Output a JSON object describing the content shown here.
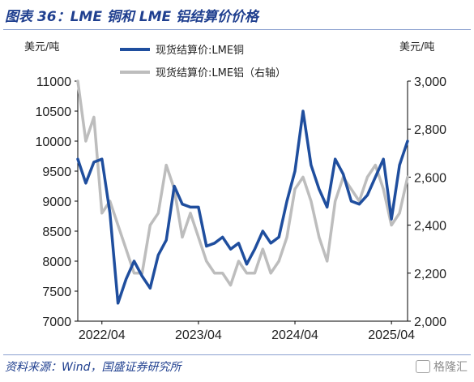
{
  "header": {
    "title": "图表 36：LME 铜和 LME 铝结算价价格"
  },
  "footer": {
    "source": "资料来源：Wind，国盛证券研究所",
    "watermark": "格隆汇"
  },
  "colors": {
    "copper": "#1f4e9e",
    "aluminum": "#bdbdbd"
  },
  "chart_data": {
    "type": "line",
    "x_tick_labels": [
      "2022/04",
      "2023/04",
      "2024/04",
      "2025/04"
    ],
    "y_left": {
      "unit_label": "美元/吨",
      "min": 7000,
      "max": 11000,
      "ticks": [
        7000,
        7500,
        8000,
        8500,
        9000,
        9500,
        10000,
        10500,
        11000
      ]
    },
    "y_right": {
      "unit_label": "美元/吨",
      "min": 2000,
      "max": 3000,
      "ticks": [
        "2,000",
        "2,200",
        "2,400",
        "2,600",
        "2,800",
        "3,000"
      ],
      "tick_values": [
        2000,
        2200,
        2400,
        2600,
        2800,
        3000
      ]
    },
    "legend": {
      "placement": "top-center"
    },
    "grid": false,
    "series": [
      {
        "name": "现货结算价:LME铜",
        "axis": "left",
        "x": [
          "2022/01",
          "2022/02",
          "2022/03",
          "2022/04",
          "2022/05",
          "2022/06",
          "2022/07",
          "2022/08",
          "2022/09",
          "2022/10",
          "2022/11",
          "2022/12",
          "2023/01",
          "2023/02",
          "2023/03",
          "2023/04",
          "2023/05",
          "2023/06",
          "2023/07",
          "2023/08",
          "2023/09",
          "2023/10",
          "2023/11",
          "2023/12",
          "2024/01",
          "2024/02",
          "2024/03",
          "2024/04",
          "2024/05",
          "2024/06",
          "2024/07",
          "2024/08",
          "2024/09",
          "2024/10",
          "2024/11",
          "2024/12",
          "2025/01",
          "2025/02",
          "2025/03",
          "2025/04",
          "2025/05",
          "2025/06"
        ],
        "values": [
          9700,
          9300,
          9650,
          9700,
          8800,
          7300,
          7700,
          8000,
          7750,
          7550,
          8100,
          8350,
          9250,
          8950,
          8900,
          8900,
          8250,
          8300,
          8400,
          8200,
          8300,
          7950,
          8200,
          8500,
          8300,
          8400,
          9000,
          9500,
          10500,
          9600,
          9200,
          8900,
          9700,
          9450,
          9000,
          8950,
          9100,
          9400,
          9700,
          8700,
          9600,
          10000
        ]
      },
      {
        "name": "现货结算价:LME铝（右轴）",
        "axis": "right",
        "x": [
          "2022/01",
          "2022/02",
          "2022/03",
          "2022/04",
          "2022/05",
          "2022/06",
          "2022/07",
          "2022/08",
          "2022/09",
          "2022/10",
          "2022/11",
          "2022/12",
          "2023/01",
          "2023/02",
          "2023/03",
          "2023/04",
          "2023/05",
          "2023/06",
          "2023/07",
          "2023/08",
          "2023/09",
          "2023/10",
          "2023/11",
          "2023/12",
          "2024/01",
          "2024/02",
          "2024/03",
          "2024/04",
          "2024/05",
          "2024/06",
          "2024/07",
          "2024/08",
          "2024/09",
          "2024/10",
          "2024/11",
          "2024/12",
          "2025/01",
          "2025/02",
          "2025/03",
          "2025/04",
          "2025/05",
          "2025/06"
        ],
        "values": [
          3000,
          2750,
          2850,
          2450,
          2500,
          2400,
          2300,
          2200,
          2200,
          2400,
          2450,
          2650,
          2550,
          2350,
          2450,
          2350,
          2250,
          2200,
          2200,
          2150,
          2250,
          2200,
          2200,
          2300,
          2200,
          2250,
          2350,
          2550,
          2600,
          2500,
          2350,
          2250,
          2500,
          2600,
          2550,
          2500,
          2600,
          2650,
          2550,
          2400,
          2450,
          2600
        ]
      }
    ]
  }
}
